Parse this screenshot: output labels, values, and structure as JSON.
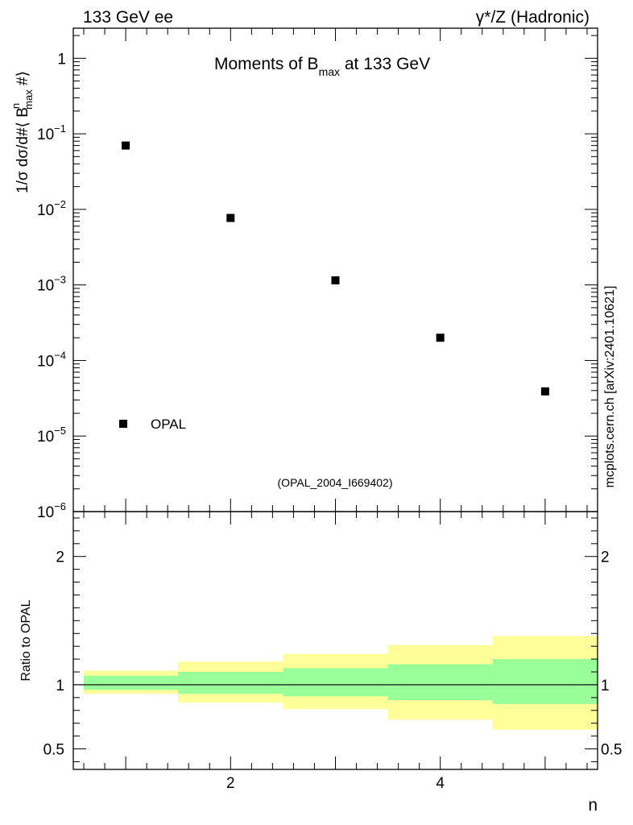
{
  "header": {
    "left": "133 GeV ee",
    "right": "γ*/Z (Hadronic)"
  },
  "side_label": "mcplots.cern.ch [arXiv:2401.10621]",
  "watermark": "(OPAL_2004_I669402)",
  "chart_data": [
    {
      "type": "scatter",
      "title": "Moments of B",
      "title_sub": "max",
      "title_tail": " at 133 GeV",
      "ylabel": "1/σ  dσ/d#⟨ B",
      "ylabel_sup": "n",
      "ylabel_sub": "max",
      "ylabel_tail": "  #⟩",
      "yscale": "log",
      "xlim": [
        0.5,
        5.5
      ],
      "ylim": [
        1e-06,
        2.5
      ],
      "y_ticks": [
        {
          "value": 1,
          "label": "1",
          "exp": ""
        },
        {
          "value": 0.1,
          "label": "10",
          "exp": "−1"
        },
        {
          "value": 0.01,
          "label": "10",
          "exp": "−2"
        },
        {
          "value": 0.001,
          "label": "10",
          "exp": "−3"
        },
        {
          "value": 0.0001,
          "label": "10",
          "exp": "−4"
        },
        {
          "value": 1e-05,
          "label": "10",
          "exp": "−5"
        },
        {
          "value": 1e-06,
          "label": "10",
          "exp": "−6"
        }
      ],
      "series": [
        {
          "name": "OPAL",
          "x": [
            1,
            2,
            3,
            4,
            5
          ],
          "y": [
            0.07,
            0.0077,
            0.00115,
            0.0002,
            3.9e-05
          ]
        }
      ],
      "legend_position": "bottom-left"
    },
    {
      "type": "area",
      "ylabel": "Ratio to OPAL",
      "xlabel": "n",
      "xlim": [
        0.5,
        5.5
      ],
      "ylim": [
        0.34,
        2.35
      ],
      "x_ticks": [
        {
          "value": 2,
          "label": "2"
        },
        {
          "value": 4,
          "label": "4"
        }
      ],
      "y_ticks": [
        {
          "value": 2,
          "label": "2"
        },
        {
          "value": 1,
          "label": "1"
        },
        {
          "value": 0.5,
          "label": "0.5"
        }
      ],
      "reference_line": 1,
      "bins": [
        {
          "x_low": 0.6,
          "x_high": 1.5,
          "inner_low": 0.96,
          "inner_high": 1.07,
          "outer_low": 0.93,
          "outer_high": 1.11
        },
        {
          "x_low": 1.5,
          "x_high": 2.5,
          "inner_low": 0.93,
          "inner_high": 1.1,
          "outer_low": 0.86,
          "outer_high": 1.18
        },
        {
          "x_low": 2.5,
          "x_high": 3.5,
          "inner_low": 0.91,
          "inner_high": 1.13,
          "outer_low": 0.81,
          "outer_high": 1.24
        },
        {
          "x_low": 3.5,
          "x_high": 4.5,
          "inner_low": 0.88,
          "inner_high": 1.16,
          "outer_low": 0.73,
          "outer_high": 1.31
        },
        {
          "x_low": 4.5,
          "x_high": 5.5,
          "inner_low": 0.85,
          "inner_high": 1.2,
          "outer_low": 0.65,
          "outer_high": 1.38
        }
      ],
      "colors": {
        "inner": "#99ff99",
        "outer": "#ffff99",
        "line": "#000000"
      }
    }
  ]
}
